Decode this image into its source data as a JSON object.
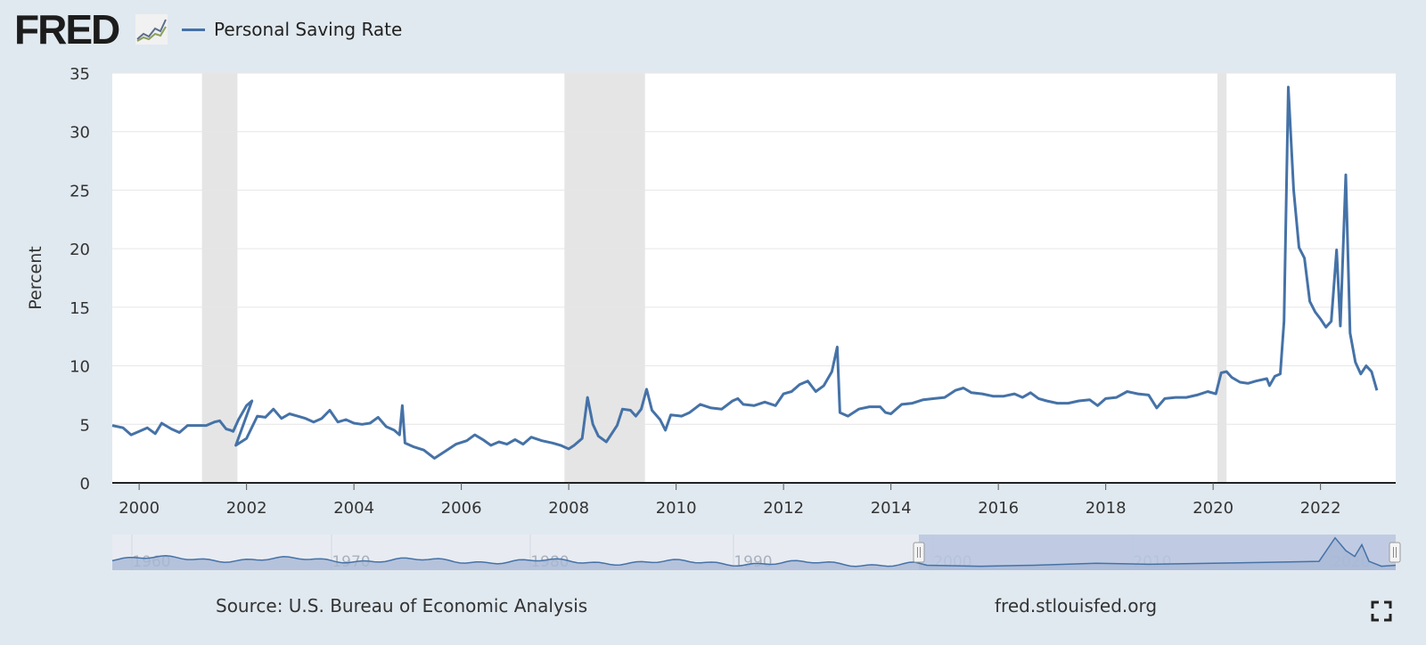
{
  "header": {
    "logo_text": "FRED",
    "legend_label": "Personal Saving Rate"
  },
  "footer": {
    "source": "Source: U.S. Bureau of Economic Analysis",
    "site": "fred.stlouisfed.org"
  },
  "colors": {
    "series": "#4572a7",
    "recession": "#e5e5e5",
    "background": "#e1e9f0",
    "navigator_fill": "#b8c6e0"
  },
  "chart_data": {
    "type": "line",
    "title": "Personal Saving Rate",
    "ylabel": "Percent",
    "xlabel": "",
    "ylim": [
      0,
      35
    ],
    "xlim": [
      1999.5,
      2023.4
    ],
    "yticks": [
      0,
      5,
      10,
      15,
      20,
      25,
      30,
      35
    ],
    "xticks": [
      2000,
      2002,
      2004,
      2006,
      2008,
      2010,
      2012,
      2014,
      2016,
      2018,
      2020,
      2022
    ],
    "grid": true,
    "recessions": [
      [
        2001.17,
        2001.83
      ],
      [
        2007.92,
        2009.42
      ],
      [
        2020.08,
        2020.25
      ]
    ],
    "series": [
      {
        "name": "Personal Saving Rate",
        "points": [
          [
            1999.5,
            4.9
          ],
          [
            1999.7,
            4.7
          ],
          [
            1999.85,
            4.1
          ],
          [
            2000.0,
            4.4
          ],
          [
            2000.15,
            4.7
          ],
          [
            2000.3,
            4.2
          ],
          [
            2000.42,
            5.1
          ],
          [
            2000.6,
            4.6
          ],
          [
            2000.75,
            4.3
          ],
          [
            2000.9,
            4.9
          ],
          [
            2001.1,
            4.9
          ],
          [
            2001.25,
            4.9
          ],
          [
            2001.4,
            5.2
          ],
          [
            2001.5,
            5.3
          ],
          [
            2001.62,
            4.6
          ],
          [
            2001.7,
            4.5
          ],
          [
            2001.75,
            4.4
          ],
          [
            2001.85,
            5.4
          ],
          [
            2002.0,
            6.6
          ],
          [
            2002.1,
            7.0
          ],
          [
            2001.8,
            3.2
          ],
          [
            2002.0,
            3.8
          ],
          [
            2002.2,
            5.7
          ],
          [
            2002.35,
            5.6
          ],
          [
            2002.5,
            6.3
          ],
          [
            2002.65,
            5.5
          ],
          [
            2002.8,
            5.9
          ],
          [
            2002.95,
            5.7
          ],
          [
            2003.1,
            5.5
          ],
          [
            2003.25,
            5.2
          ],
          [
            2003.4,
            5.5
          ],
          [
            2003.55,
            6.2
          ],
          [
            2003.7,
            5.2
          ],
          [
            2003.85,
            5.4
          ],
          [
            2004.0,
            5.1
          ],
          [
            2004.15,
            5.0
          ],
          [
            2004.3,
            5.1
          ],
          [
            2004.45,
            5.6
          ],
          [
            2004.6,
            4.8
          ],
          [
            2004.75,
            4.5
          ],
          [
            2004.85,
            4.1
          ],
          [
            2004.9,
            6.6
          ],
          [
            2004.95,
            3.4
          ],
          [
            2005.1,
            3.1
          ],
          [
            2005.3,
            2.8
          ],
          [
            2005.5,
            2.1
          ],
          [
            2005.7,
            2.7
          ],
          [
            2005.9,
            3.3
          ],
          [
            2006.1,
            3.6
          ],
          [
            2006.25,
            4.1
          ],
          [
            2006.4,
            3.7
          ],
          [
            2006.55,
            3.2
          ],
          [
            2006.7,
            3.5
          ],
          [
            2006.85,
            3.3
          ],
          [
            2007.0,
            3.7
          ],
          [
            2007.15,
            3.3
          ],
          [
            2007.3,
            3.9
          ],
          [
            2007.5,
            3.6
          ],
          [
            2007.7,
            3.4
          ],
          [
            2007.85,
            3.2
          ],
          [
            2008.0,
            2.9
          ],
          [
            2008.1,
            3.2
          ],
          [
            2008.25,
            3.8
          ],
          [
            2008.35,
            7.3
          ],
          [
            2008.45,
            5.0
          ],
          [
            2008.55,
            4.0
          ],
          [
            2008.7,
            3.5
          ],
          [
            2008.9,
            4.9
          ],
          [
            2009.0,
            6.3
          ],
          [
            2009.15,
            6.2
          ],
          [
            2009.25,
            5.7
          ],
          [
            2009.35,
            6.3
          ],
          [
            2009.45,
            8.0
          ],
          [
            2009.55,
            6.2
          ],
          [
            2009.7,
            5.4
          ],
          [
            2009.8,
            4.5
          ],
          [
            2009.9,
            5.8
          ],
          [
            2010.1,
            5.7
          ],
          [
            2010.25,
            6.0
          ],
          [
            2010.45,
            6.7
          ],
          [
            2010.65,
            6.4
          ],
          [
            2010.85,
            6.3
          ],
          [
            2011.05,
            7.0
          ],
          [
            2011.15,
            7.2
          ],
          [
            2011.25,
            6.7
          ],
          [
            2011.45,
            6.6
          ],
          [
            2011.65,
            6.9
          ],
          [
            2011.85,
            6.6
          ],
          [
            2012.0,
            7.6
          ],
          [
            2012.15,
            7.8
          ],
          [
            2012.3,
            8.4
          ],
          [
            2012.45,
            8.7
          ],
          [
            2012.6,
            7.8
          ],
          [
            2012.75,
            8.3
          ],
          [
            2012.9,
            9.5
          ],
          [
            2013.0,
            11.6
          ],
          [
            2013.05,
            6.0
          ],
          [
            2013.2,
            5.7
          ],
          [
            2013.4,
            6.3
          ],
          [
            2013.6,
            6.5
          ],
          [
            2013.8,
            6.5
          ],
          [
            2013.9,
            6.0
          ],
          [
            2014.0,
            5.9
          ],
          [
            2014.2,
            6.7
          ],
          [
            2014.4,
            6.8
          ],
          [
            2014.6,
            7.1
          ],
          [
            2014.8,
            7.2
          ],
          [
            2015.0,
            7.3
          ],
          [
            2015.2,
            7.9
          ],
          [
            2015.35,
            8.1
          ],
          [
            2015.5,
            7.7
          ],
          [
            2015.7,
            7.6
          ],
          [
            2015.9,
            7.4
          ],
          [
            2016.1,
            7.4
          ],
          [
            2016.3,
            7.6
          ],
          [
            2016.45,
            7.3
          ],
          [
            2016.6,
            7.7
          ],
          [
            2016.75,
            7.2
          ],
          [
            2016.9,
            7.0
          ],
          [
            2017.1,
            6.8
          ],
          [
            2017.3,
            6.8
          ],
          [
            2017.5,
            7.0
          ],
          [
            2017.7,
            7.1
          ],
          [
            2017.85,
            6.6
          ],
          [
            2018.0,
            7.2
          ],
          [
            2018.2,
            7.3
          ],
          [
            2018.4,
            7.8
          ],
          [
            2018.6,
            7.6
          ],
          [
            2018.8,
            7.5
          ],
          [
            2018.95,
            6.4
          ],
          [
            2019.1,
            7.2
          ],
          [
            2019.3,
            7.3
          ],
          [
            2019.5,
            7.3
          ],
          [
            2019.7,
            7.5
          ],
          [
            2019.9,
            7.8
          ],
          [
            2020.05,
            7.6
          ],
          [
            2020.15,
            9.4
          ],
          [
            2020.25,
            9.5
          ],
          [
            2020.35,
            9.0
          ],
          [
            2020.5,
            8.6
          ],
          [
            2020.65,
            8.5
          ],
          [
            2020.8,
            8.7
          ],
          [
            2021.0,
            8.9
          ],
          [
            2021.05,
            8.3
          ],
          [
            2021.15,
            9.1
          ],
          [
            2021.25,
            9.3
          ],
          [
            2021.32,
            13.8
          ],
          [
            2021.4,
            33.8
          ],
          [
            2021.5,
            25.0
          ],
          [
            2021.6,
            20.1
          ],
          [
            2021.7,
            19.2
          ],
          [
            2021.8,
            15.5
          ],
          [
            2021.9,
            14.6
          ],
          [
            2022.0,
            14.0
          ],
          [
            2022.1,
            13.3
          ],
          [
            2022.2,
            13.8
          ],
          [
            2022.3,
            19.9
          ],
          [
            2022.37,
            13.4
          ],
          [
            2022.47,
            26.3
          ],
          [
            2022.55,
            12.8
          ],
          [
            2022.65,
            10.3
          ],
          [
            2022.75,
            9.3
          ],
          [
            2022.85,
            10.0
          ],
          [
            2022.95,
            9.5
          ],
          [
            2023.05,
            7.9
          ]
        ]
      }
    ]
  }
}
